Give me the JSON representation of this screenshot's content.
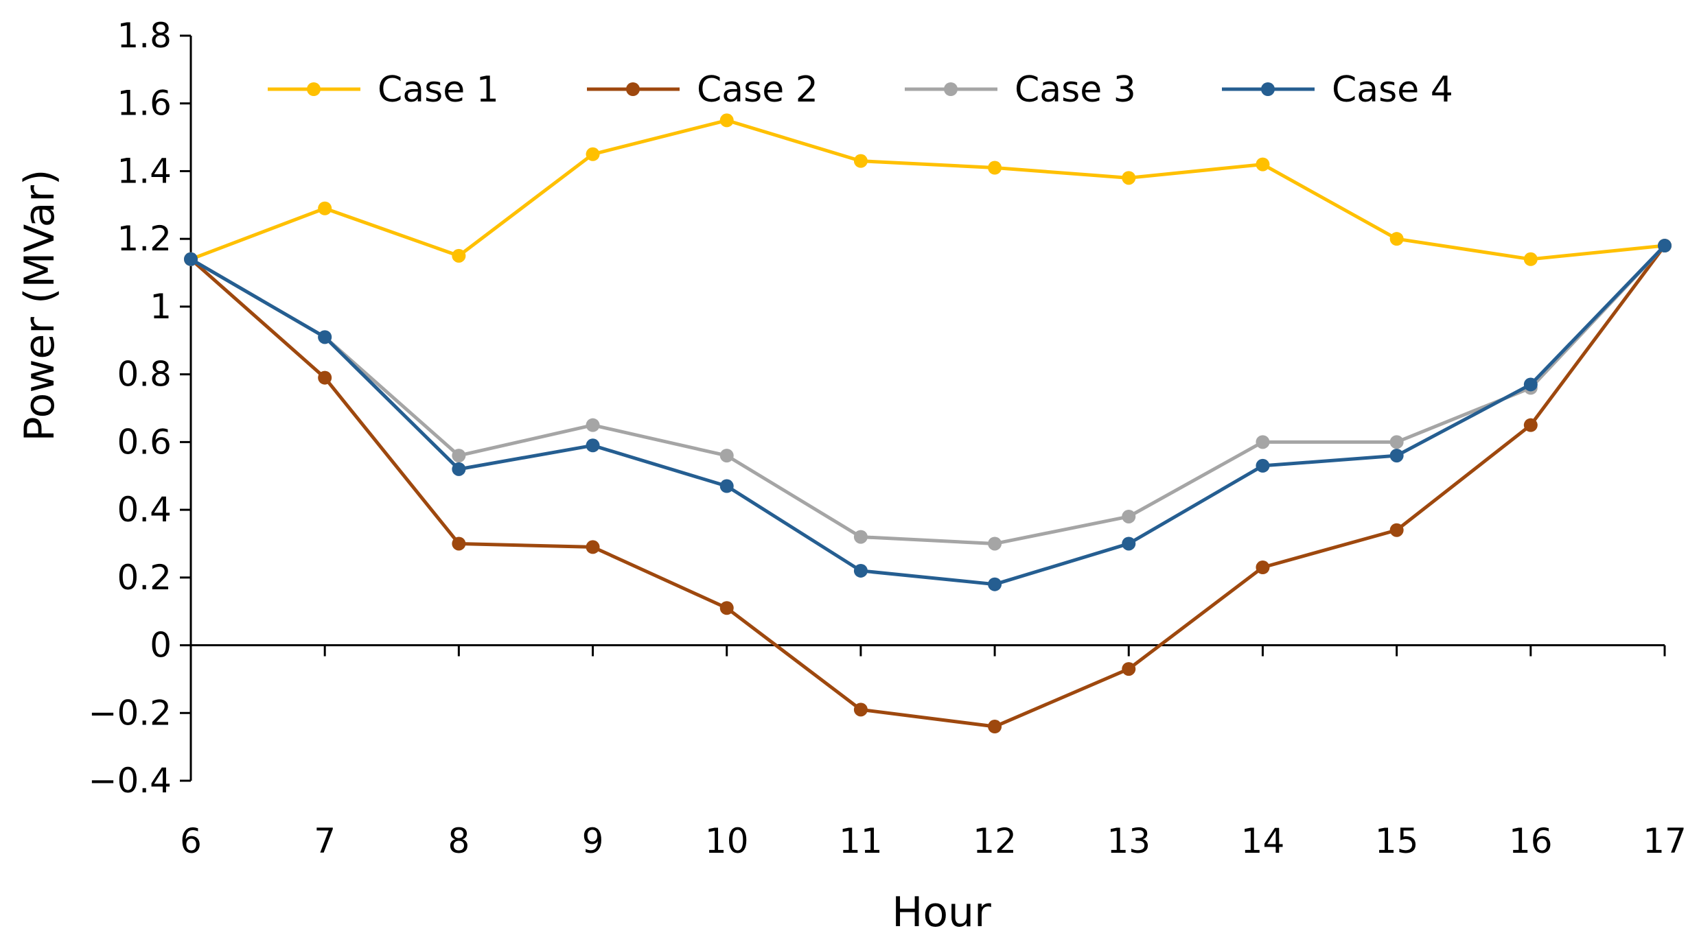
{
  "chart_data": {
    "type": "line",
    "title": "",
    "xlabel": "Hour",
    "ylabel": "Power (MVar)",
    "x": [
      6,
      7,
      8,
      9,
      10,
      11,
      12,
      13,
      14,
      15,
      16,
      17
    ],
    "x_tick_labels": [
      "6",
      "7",
      "8",
      "9",
      "10",
      "11",
      "12",
      "13",
      "14",
      "15",
      "16",
      "17"
    ],
    "ylim": [
      -0.4,
      1.8
    ],
    "y_ticks": [
      -0.4,
      -0.2,
      0,
      0.2,
      0.4,
      0.6,
      0.8,
      1,
      1.2,
      1.4,
      1.6,
      1.8
    ],
    "y_tick_labels": [
      "−0.4",
      "−0.2",
      "0",
      "0.2",
      "0.4",
      "0.6",
      "0.8",
      "1",
      "1.2",
      "1.4",
      "1.6",
      "1.8"
    ],
    "grid": false,
    "legend_position": "top",
    "series": [
      {
        "name": "Case 1",
        "color": "#FFC000",
        "values": [
          1.14,
          1.29,
          1.15,
          1.45,
          1.55,
          1.43,
          1.41,
          1.38,
          1.42,
          1.2,
          1.14,
          1.18
        ]
      },
      {
        "name": "Case 2",
        "color": "#9E480E",
        "values": [
          1.14,
          0.79,
          0.3,
          0.29,
          0.11,
          -0.19,
          -0.24,
          -0.07,
          0.23,
          0.34,
          0.65,
          1.18
        ]
      },
      {
        "name": "Case 3",
        "color": "#A5A5A5",
        "values": [
          1.14,
          0.91,
          0.56,
          0.65,
          0.56,
          0.32,
          0.3,
          0.38,
          0.6,
          0.6,
          0.76,
          1.18
        ]
      },
      {
        "name": "Case 4",
        "color": "#255E91",
        "values": [
          1.14,
          0.91,
          0.52,
          0.59,
          0.47,
          0.22,
          0.18,
          0.3,
          0.53,
          0.56,
          0.77,
          1.18
        ]
      }
    ]
  }
}
